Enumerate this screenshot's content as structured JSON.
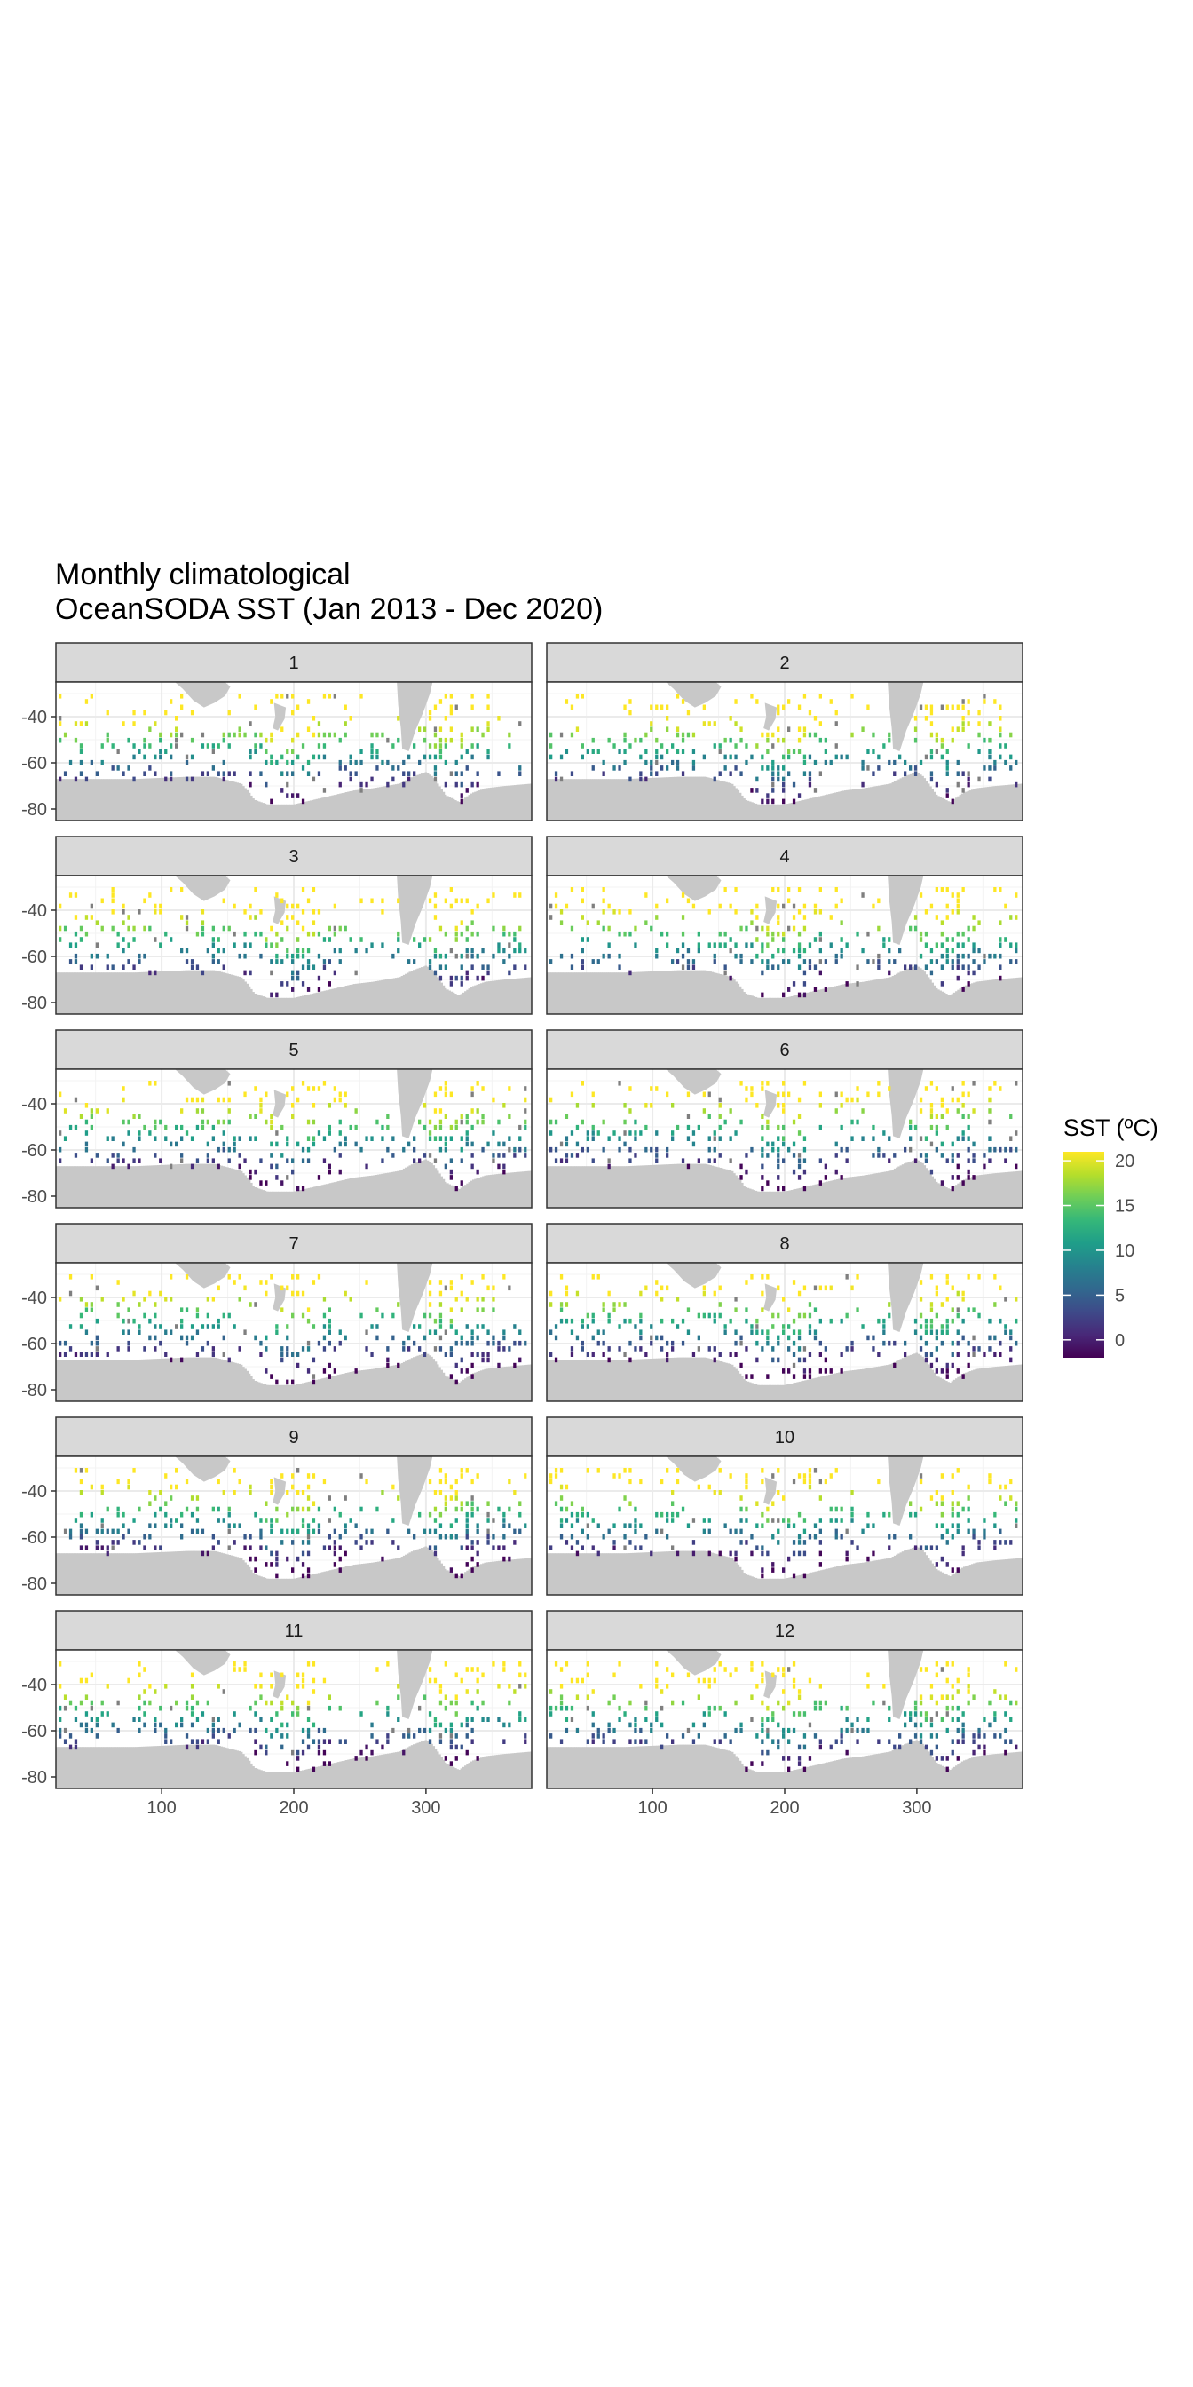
{
  "chart_data": {
    "type": "heatmap",
    "title_line1": "Monthly climatological",
    "title_line2": "OceanSODA SST (Jan 2013 - Dec 2020)",
    "xlabel": "",
    "ylabel": "",
    "xlim": [
      20,
      380
    ],
    "ylim": [
      -85,
      -25
    ],
    "x_ticks": [
      100,
      200,
      300
    ],
    "y_ticks": [
      -40,
      -60,
      -80
    ],
    "facet_labels": [
      "1",
      "2",
      "3",
      "4",
      "5",
      "6",
      "7",
      "8",
      "9",
      "10",
      "11",
      "12"
    ],
    "grid": true,
    "legend": {
      "title": "SST (ºC)",
      "placement": "right",
      "ticks": [
        0,
        5,
        10,
        15,
        20
      ],
      "range": [
        -2,
        21
      ],
      "colormap": [
        "#440154",
        "#482878",
        "#3e4a89",
        "#31688e",
        "#26828e",
        "#1f9e89",
        "#35b779",
        "#6ece58",
        "#b5de2b",
        "#fde725"
      ]
    },
    "colors": {
      "land": "#c8c8c8",
      "missing": "#7f7f7f",
      "strip_background": "#d9d9d9",
      "panel_border": "#333333",
      "grid": "#ebebeb"
    }
  }
}
